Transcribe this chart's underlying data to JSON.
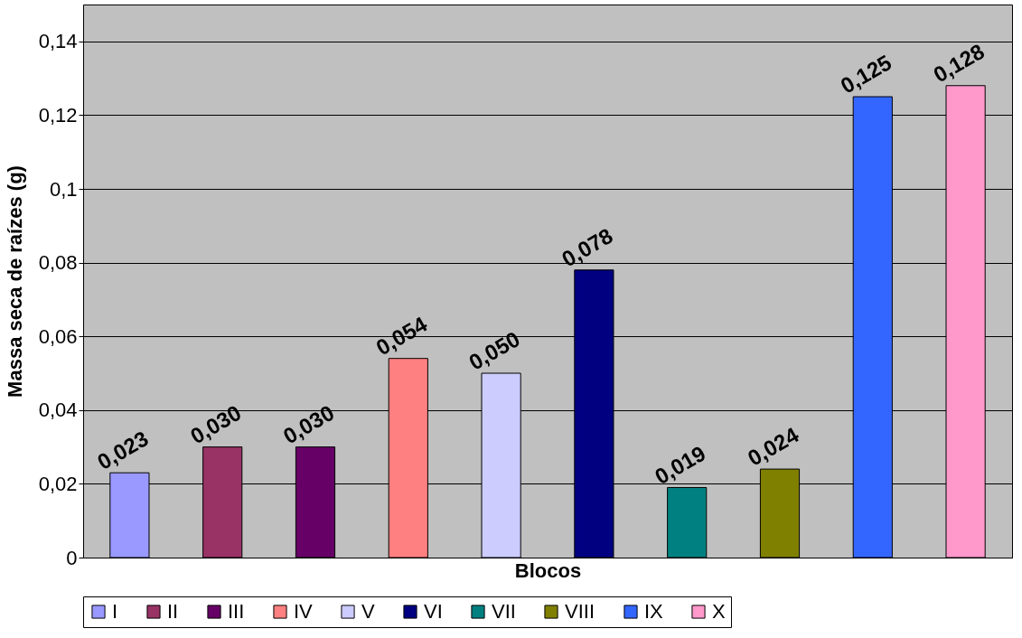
{
  "chart_data": {
    "type": "bar",
    "xlabel": "Blocos",
    "ylabel": "Massa seca de raízes  (g)",
    "categories": [
      null,
      null,
      null,
      null,
      null,
      null,
      null,
      null,
      null,
      null
    ],
    "series": [
      {
        "name": "I",
        "color": "#9999ff",
        "values": [
          0.023,
          null,
          null,
          null,
          null,
          null,
          null,
          null,
          null,
          null
        ],
        "value_labels": [
          "0,023",
          null,
          null,
          null,
          null,
          null,
          null,
          null,
          null,
          null
        ]
      },
      {
        "name": "II",
        "color": "#993366",
        "values": [
          null,
          0.03,
          null,
          null,
          null,
          null,
          null,
          null,
          null,
          null
        ],
        "value_labels": [
          null,
          "0,030",
          null,
          null,
          null,
          null,
          null,
          null,
          null,
          null
        ]
      },
      {
        "name": "III",
        "color": "#660066",
        "values": [
          null,
          null,
          0.03,
          null,
          null,
          null,
          null,
          null,
          null,
          null
        ],
        "value_labels": [
          null,
          null,
          "0,030",
          null,
          null,
          null,
          null,
          null,
          null,
          null
        ]
      },
      {
        "name": "IV",
        "color": "#ff8080",
        "values": [
          null,
          null,
          null,
          0.054,
          null,
          null,
          null,
          null,
          null,
          null
        ],
        "value_labels": [
          null,
          null,
          null,
          "0,054",
          null,
          null,
          null,
          null,
          null,
          null
        ]
      },
      {
        "name": "V",
        "color": "#ccccff",
        "values": [
          null,
          null,
          null,
          null,
          0.05,
          null,
          null,
          null,
          null,
          null
        ],
        "value_labels": [
          null,
          null,
          null,
          null,
          "0,050",
          null,
          null,
          null,
          null,
          null
        ]
      },
      {
        "name": "VI",
        "color": "#000080",
        "values": [
          null,
          null,
          null,
          null,
          null,
          0.078,
          null,
          null,
          null,
          null
        ],
        "value_labels": [
          null,
          null,
          null,
          null,
          null,
          "0,078",
          null,
          null,
          null,
          null
        ]
      },
      {
        "name": "VII",
        "color": "#008080",
        "values": [
          null,
          null,
          null,
          null,
          null,
          null,
          0.019,
          null,
          null,
          null
        ],
        "value_labels": [
          null,
          null,
          null,
          null,
          null,
          null,
          "0,019",
          null,
          null,
          null
        ]
      },
      {
        "name": "VIII",
        "color": "#808000",
        "values": [
          null,
          null,
          null,
          null,
          null,
          null,
          null,
          0.024,
          null,
          null
        ],
        "value_labels": [
          null,
          null,
          null,
          null,
          null,
          null,
          null,
          "0,024",
          null,
          null
        ]
      },
      {
        "name": "IX",
        "color": "#3366ff",
        "values": [
          null,
          null,
          null,
          null,
          null,
          null,
          null,
          null,
          0.125,
          null
        ],
        "value_labels": [
          null,
          null,
          null,
          null,
          null,
          null,
          null,
          null,
          "0,125",
          null
        ]
      },
      {
        "name": "X",
        "color": "#ff99cc",
        "values": [
          null,
          null,
          null,
          null,
          null,
          null,
          null,
          null,
          null,
          0.128
        ],
        "value_labels": [
          null,
          null,
          null,
          null,
          null,
          null,
          null,
          null,
          null,
          "0,128"
        ]
      }
    ],
    "ylim": [
      0,
      0.15
    ],
    "yticks": [
      {
        "value": 0,
        "label": "0"
      },
      {
        "value": 0.02,
        "label": "0,02"
      },
      {
        "value": 0.04,
        "label": "0,04"
      },
      {
        "value": 0.06,
        "label": "0,06"
      },
      {
        "value": 0.08,
        "label": "0,08"
      },
      {
        "value": 0.1,
        "label": "0,1"
      },
      {
        "value": 0.12,
        "label": "0,12"
      },
      {
        "value": 0.14,
        "label": "0,14"
      }
    ],
    "grid": "y",
    "legend": "bottom",
    "tick_labels": "y"
  }
}
